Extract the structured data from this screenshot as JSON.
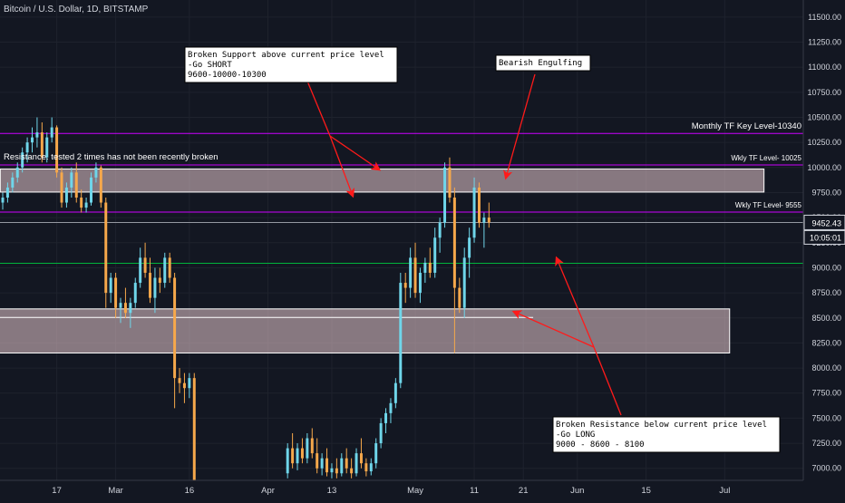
{
  "chart_data": {
    "type": "candlestick",
    "title": "Bitcoin / U.S. Dollar, 1D, BITSTAMP",
    "ylim": [
      6880,
      11580
    ],
    "y_ticks": [
      7000,
      7250,
      7500,
      7750,
      8000,
      8250,
      8500,
      8750,
      9000,
      9250,
      9500,
      9750,
      10000,
      10250,
      10500,
      10750,
      11000,
      11250,
      11500
    ],
    "y_tick_labels": [
      "7000.00",
      "7250.00",
      "7500.00",
      "7750.00",
      "8000.00",
      "8250.00",
      "8500.00",
      "8750.00",
      "9000.00",
      "9250.00",
      "9500.00",
      "9750.00",
      "10000.00",
      "10250.00",
      "10500.00",
      "10750.00",
      "11000.00",
      "11250.00",
      "11500.00"
    ],
    "x_tick_labels": [
      {
        "label": "17",
        "index": 11
      },
      {
        "label": "Mar",
        "index": 23
      },
      {
        "label": "16",
        "index": 38
      },
      {
        "label": "Apr",
        "index": 54
      },
      {
        "label": "13",
        "index": 67
      },
      {
        "label": "May",
        "index": 84
      },
      {
        "label": "11",
        "index": 96
      },
      {
        "label": "21",
        "index": 106
      },
      {
        "label": "Jun",
        "index": 117
      },
      {
        "label": "15",
        "index": 131
      },
      {
        "label": "Jul",
        "index": 147
      }
    ],
    "x_index_range": [
      0,
      163
    ],
    "current_price": "9452.43",
    "countdown": "10:05:01",
    "colors": {
      "up": "#6fd6ea",
      "down": "#f6a84b",
      "magenta": "#cc00ff",
      "green": "#00b33c",
      "zone_fill": "rgba(232,200,206,0.55)",
      "zone_stroke": "#ffffff",
      "arrow": "#ff1a1a",
      "bg": "#131722",
      "text": "#d1d4dc",
      "grid": "#1e222d"
    },
    "candles": [
      [
        0,
        9650,
        9750,
        9580,
        9700
      ],
      [
        1,
        9700,
        9850,
        9650,
        9800
      ],
      [
        2,
        9800,
        9950,
        9750,
        9900
      ],
      [
        3,
        9900,
        10050,
        9850,
        10000
      ],
      [
        4,
        10000,
        10200,
        9950,
        10150
      ],
      [
        5,
        10150,
        10300,
        10050,
        10250
      ],
      [
        6,
        10250,
        10400,
        10150,
        10300
      ],
      [
        7,
        10300,
        10500,
        10200,
        10350
      ],
      [
        8,
        10350,
        10450,
        10050,
        10100
      ],
      [
        9,
        10100,
        10350,
        10050,
        10300
      ],
      [
        10,
        10300,
        10500,
        10250,
        10400
      ],
      [
        11,
        10400,
        10420,
        9900,
        9950
      ],
      [
        12,
        9950,
        10000,
        9600,
        9650
      ],
      [
        13,
        9650,
        9850,
        9600,
        9800
      ],
      [
        14,
        9800,
        10000,
        9700,
        9950
      ],
      [
        15,
        9950,
        10050,
        9650,
        9700
      ],
      [
        16,
        9700,
        9780,
        9550,
        9600
      ],
      [
        17,
        9600,
        9700,
        9550,
        9650
      ],
      [
        18,
        9650,
        9950,
        9620,
        9900
      ],
      [
        19,
        9900,
        10050,
        9850,
        10000
      ],
      [
        20,
        10000,
        10020,
        9600,
        9650
      ],
      [
        21,
        9650,
        9700,
        8600,
        8750
      ],
      [
        22,
        8750,
        8950,
        8650,
        8900
      ],
      [
        23,
        8900,
        8950,
        8500,
        8600
      ],
      [
        24,
        8600,
        8700,
        8450,
        8650
      ],
      [
        25,
        8650,
        8800,
        8500,
        8550
      ],
      [
        26,
        8550,
        8700,
        8400,
        8650
      ],
      [
        27,
        8650,
        8900,
        8600,
        8850
      ],
      [
        28,
        8850,
        9200,
        8800,
        9100
      ],
      [
        29,
        9100,
        9250,
        8900,
        8950
      ],
      [
        30,
        8950,
        9100,
        8650,
        8700
      ],
      [
        31,
        8700,
        9000,
        8550,
        8900
      ],
      [
        32,
        8900,
        9000,
        8750,
        8850
      ],
      [
        33,
        8850,
        9150,
        8800,
        9100
      ],
      [
        34,
        9100,
        9150,
        8850,
        8900
      ],
      [
        35,
        8900,
        8950,
        7600,
        7900
      ],
      [
        36,
        7900,
        8000,
        7750,
        7850
      ],
      [
        37,
        7850,
        7950,
        7650,
        7800
      ],
      [
        38,
        7800,
        7950,
        7700,
        7900
      ],
      [
        39,
        7900,
        7950,
        6880,
        6880
      ],
      [
        58,
        6950,
        7250,
        6900,
        7200
      ],
      [
        59,
        7200,
        7350,
        7000,
        7050
      ],
      [
        60,
        7050,
        7250,
        6980,
        7200
      ],
      [
        61,
        7200,
        7300,
        7050,
        7100
      ],
      [
        62,
        7100,
        7350,
        7050,
        7300
      ],
      [
        63,
        7300,
        7400,
        7100,
        7150
      ],
      [
        64,
        7150,
        7300,
        6950,
        7000
      ],
      [
        65,
        7000,
        7150,
        6930,
        7100
      ],
      [
        66,
        7100,
        7200,
        6920,
        6960
      ],
      [
        67,
        6960,
        7050,
        6900,
        7000
      ],
      [
        68,
        7000,
        7100,
        6900,
        6950
      ],
      [
        69,
        6950,
        7150,
        6920,
        7100
      ],
      [
        70,
        7100,
        7200,
        6950,
        7000
      ],
      [
        71,
        7000,
        7100,
        6900,
        6950
      ],
      [
        72,
        6950,
        7200,
        6920,
        7150
      ],
      [
        73,
        7150,
        7300,
        7000,
        7050
      ],
      [
        74,
        7050,
        7100,
        6920,
        6970
      ],
      [
        75,
        6970,
        7100,
        6930,
        7050
      ],
      [
        76,
        7050,
        7300,
        7000,
        7250
      ],
      [
        77,
        7250,
        7500,
        7200,
        7450
      ],
      [
        78,
        7450,
        7600,
        7350,
        7550
      ],
      [
        79,
        7550,
        7700,
        7450,
        7650
      ],
      [
        80,
        7650,
        7900,
        7600,
        7850
      ],
      [
        81,
        7850,
        8950,
        7800,
        8850
      ],
      [
        82,
        8850,
        8950,
        8650,
        8800
      ],
      [
        83,
        8800,
        9200,
        8700,
        9100
      ],
      [
        84,
        9100,
        9250,
        8700,
        8750
      ],
      [
        85,
        8750,
        9000,
        8650,
        8950
      ],
      [
        86,
        8950,
        9100,
        8850,
        9050
      ],
      [
        87,
        9050,
        9200,
        8900,
        8950
      ],
      [
        88,
        8950,
        9400,
        8900,
        9300
      ],
      [
        89,
        9300,
        9500,
        9150,
        9450
      ],
      [
        90,
        9450,
        10050,
        9400,
        10000
      ],
      [
        91,
        10000,
        10100,
        9650,
        9700
      ],
      [
        92,
        9700,
        9800,
        8150,
        8800
      ],
      [
        93,
        8800,
        8900,
        8550,
        8600
      ],
      [
        94,
        8600,
        9200,
        8500,
        9100
      ],
      [
        95,
        9100,
        9400,
        8900,
        9300
      ],
      [
        96,
        9300,
        9900,
        9250,
        9800
      ],
      [
        97,
        9800,
        9850,
        9400,
        9450
      ],
      [
        98,
        9450,
        9550,
        9200,
        9500
      ],
      [
        99,
        9500,
        9650,
        9400,
        9452
      ]
    ],
    "horizontal_lines": [
      {
        "name": "monthly-tf-line",
        "value": 10340,
        "color": "magenta",
        "label": "Monthly TF Key Level-10340"
      },
      {
        "name": "wkly-10025-line",
        "value": 10025,
        "color": "magenta",
        "label": "Wkly TF Level- 10025"
      },
      {
        "name": "wkly-9555-line",
        "value": 9555,
        "color": "magenta",
        "label": "Wkly TF Level- 9555"
      },
      {
        "name": "green-level-line",
        "value": 9045,
        "color": "green",
        "label": ""
      },
      {
        "name": "current-price-line",
        "value": 9452,
        "color": "grey",
        "label": ""
      }
    ],
    "zones": [
      {
        "name": "upper-zone",
        "y_high": 9985,
        "y_low": 9755,
        "x_start": -0.5,
        "x_end": 155
      },
      {
        "name": "lower-zone",
        "y_high": 8590,
        "y_low": 8150,
        "x_start": -5,
        "x_end": 148
      },
      {
        "name": "lower-zone-midline",
        "y_high": 8505,
        "y_low": 8505,
        "x_start": -5,
        "x_end": 108
      }
    ],
    "annotations": {
      "resistance_text": "Resistance. tested 2 times has not been recently broken",
      "box_short": [
        "Broken Support above current price level",
        "-Go SHORT",
        "9600-10000-10300"
      ],
      "box_engulf": [
        "Bearish Engulfing"
      ],
      "box_long": [
        "Broken Resistance below current price level",
        "-Go LONG",
        "9000 - 8600 - 8100"
      ]
    }
  }
}
